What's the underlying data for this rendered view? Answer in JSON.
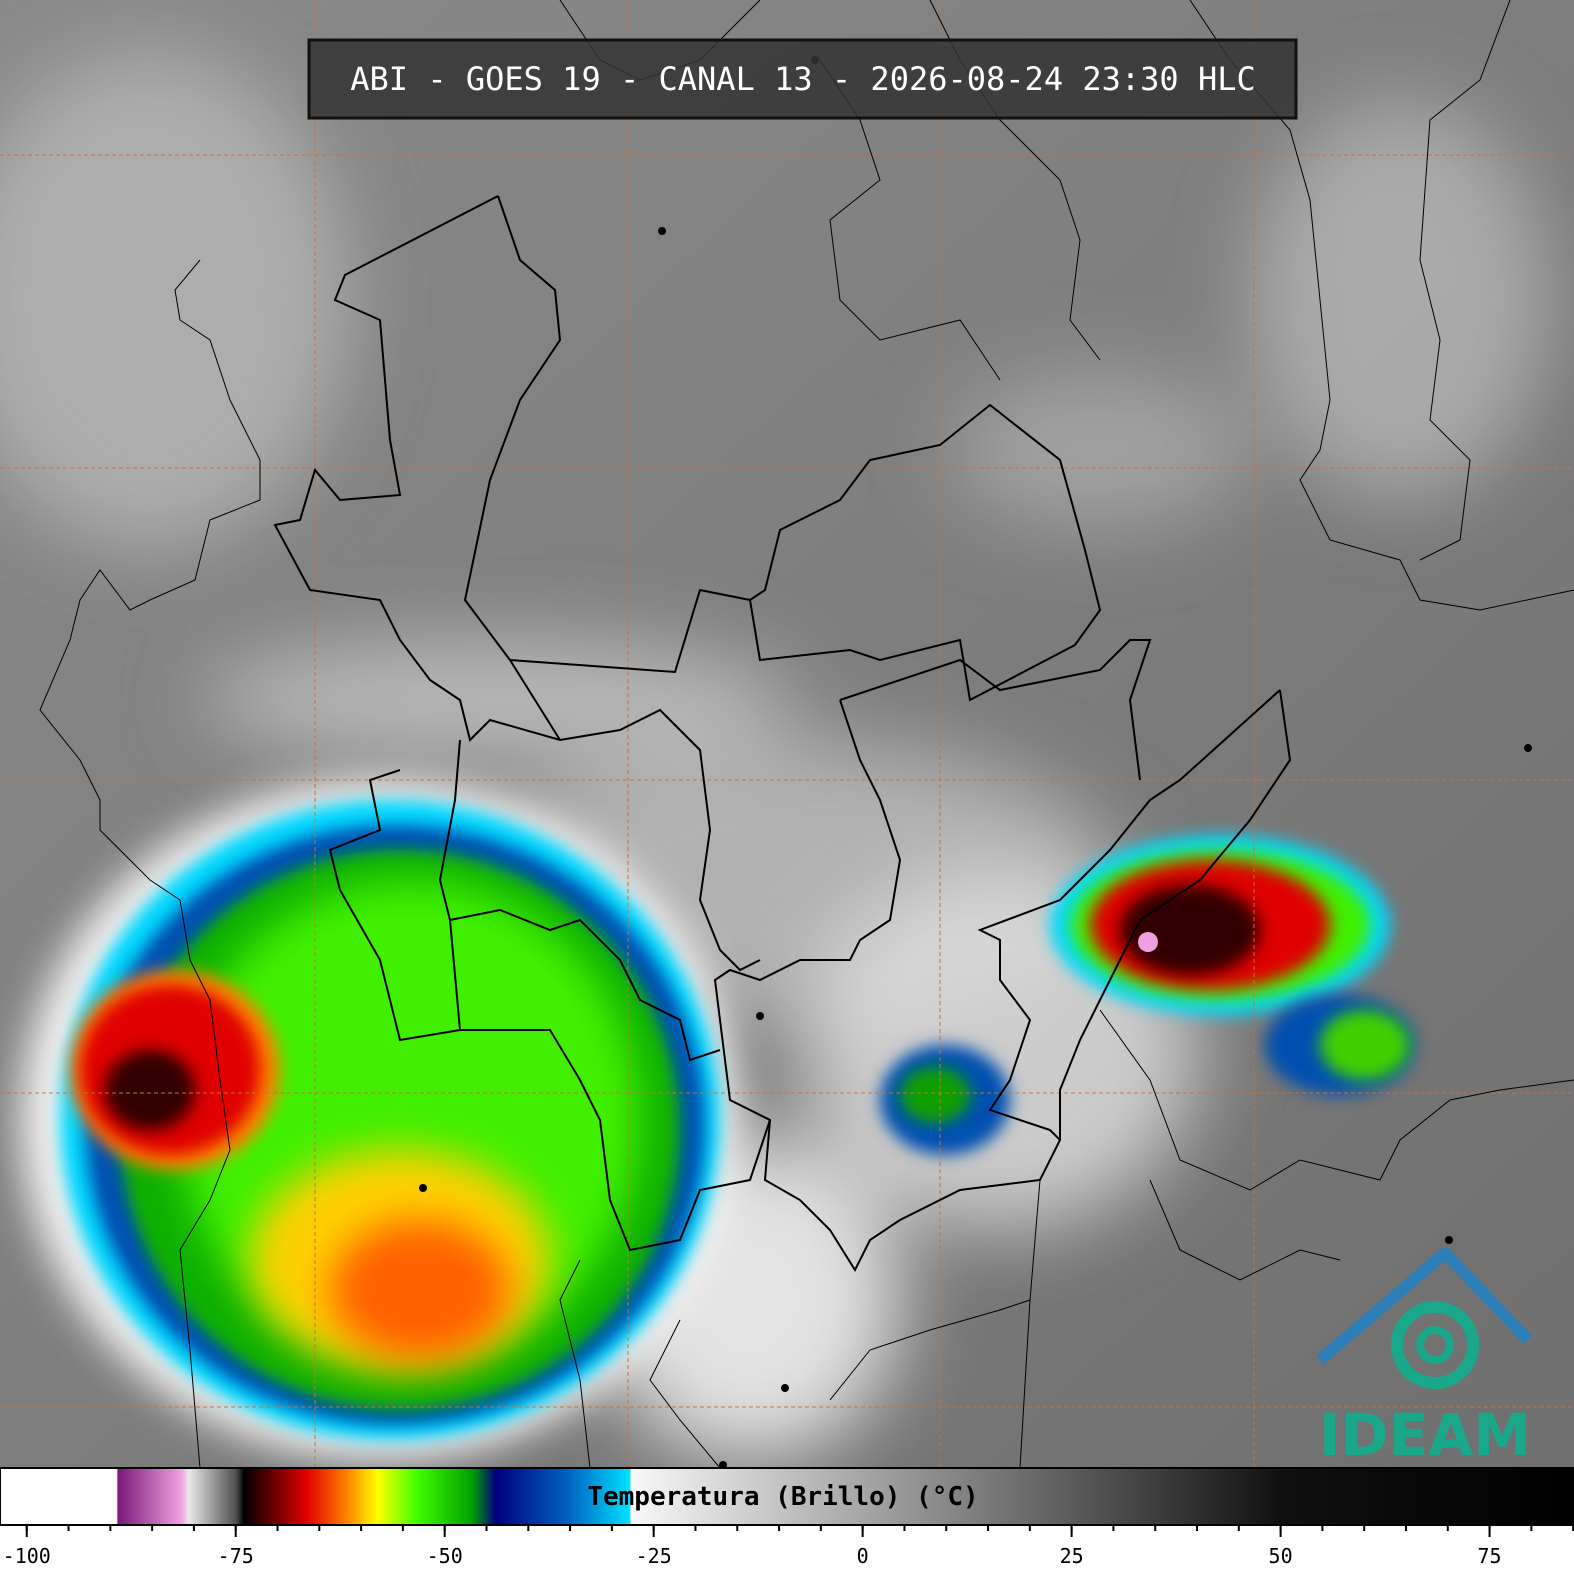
{
  "header": {
    "title": "ABI - GOES 19 - CANAL 13 - 2026-08-24 23:30 HLC"
  },
  "colorbar": {
    "label": "Temperatura (Brillo) (°C)",
    "lim": [
      -103.2,
      85.1
    ],
    "ticks": [
      -100,
      -75,
      -50,
      -25,
      0,
      25,
      50,
      75
    ],
    "minor_step": 5
  },
  "logo": {
    "text": "IDEAM"
  }
}
